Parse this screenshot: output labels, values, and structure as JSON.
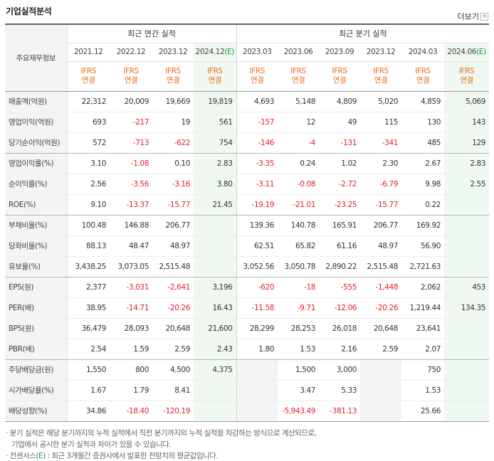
{
  "title": "기업실적분석",
  "more_label": "더보기",
  "header": {
    "row_title": "주요재무정보",
    "annual_group": "최근 연간 실적",
    "quarter_group": "최근 분기 실적",
    "periods": [
      {
        "base": "2021.12",
        "est": ""
      },
      {
        "base": "2022.12",
        "est": ""
      },
      {
        "base": "2023.12",
        "est": ""
      },
      {
        "base": "2024.12",
        "est": "(E)"
      },
      {
        "base": "2023.03",
        "est": ""
      },
      {
        "base": "2023.06",
        "est": ""
      },
      {
        "base": "2023.09",
        "est": ""
      },
      {
        "base": "2023.12",
        "est": ""
      },
      {
        "base": "2024.03",
        "est": ""
      },
      {
        "base": "2024.06",
        "est": "(E)"
      }
    ],
    "basis_top": "IFRS",
    "basis_bottom": "연결"
  },
  "rows": [
    {
      "label": "매출액(억원)",
      "values": [
        "22,312",
        "20,009",
        "19,669",
        "19,819",
        "4,693",
        "5,148",
        "4,809",
        "5,020",
        "4,859",
        "5,069"
      ]
    },
    {
      "label": "영업이익(억원)",
      "values": [
        "693",
        "-217",
        "19",
        "561",
        "-157",
        "12",
        "49",
        "115",
        "130",
        "143"
      ]
    },
    {
      "label": "당기순이익(억원)",
      "values": [
        "572",
        "-713",
        "-622",
        "754",
        "-146",
        "-4",
        "-131",
        "-341",
        "485",
        "129"
      ]
    },
    {
      "label": "영업이익률(%)",
      "values": [
        "3.10",
        "-1.08",
        "0.10",
        "2.83",
        "-3.35",
        "0.24",
        "1.02",
        "2.30",
        "2.67",
        "2.83"
      ]
    },
    {
      "label": "순이익률(%)",
      "values": [
        "2.56",
        "-3.56",
        "-3.16",
        "3.80",
        "-3.11",
        "-0.08",
        "-2.72",
        "-6.79",
        "9.98",
        "2.55"
      ]
    },
    {
      "label": "ROE(%)",
      "values": [
        "9.10",
        "-13.37",
        "-15.77",
        "21.45",
        "-19.19",
        "-21.01",
        "-23.25",
        "-15.77",
        "0.22",
        ""
      ]
    },
    {
      "label": "부채비율(%)",
      "values": [
        "100.48",
        "146.88",
        "206.77",
        "",
        "139.36",
        "140.78",
        "165.91",
        "206.77",
        "169.92",
        ""
      ]
    },
    {
      "label": "당좌비율(%)",
      "values": [
        "88.13",
        "48.47",
        "48.97",
        "",
        "62.51",
        "65.82",
        "61.16",
        "48.97",
        "56.90",
        ""
      ]
    },
    {
      "label": "유보율(%)",
      "values": [
        "3,438.25",
        "3,073.05",
        "2,515.48",
        "",
        "3,052.56",
        "3,050.78",
        "2,890.22",
        "2,515.48",
        "2,721.63",
        ""
      ]
    },
    {
      "label": "EPS(원)",
      "values": [
        "2,377",
        "-3,031",
        "-2,641",
        "3,196",
        "-620",
        "-18",
        "-555",
        "-1,448",
        "2,062",
        "453"
      ]
    },
    {
      "label": "PER(배)",
      "values": [
        "38.95",
        "-14.71",
        "-20.26",
        "16.43",
        "-11.58",
        "-9.71",
        "-12.06",
        "-20.26",
        "1,219.44",
        "134.35"
      ]
    },
    {
      "label": "BPS(원)",
      "values": [
        "36,479",
        "28,093",
        "20,648",
        "21,600",
        "28,299",
        "28,253",
        "26,018",
        "20,648",
        "23,641",
        ""
      ]
    },
    {
      "label": "PBR(배)",
      "values": [
        "2.54",
        "1.59",
        "2.59",
        "2.43",
        "1.80",
        "1.53",
        "2.16",
        "2.59",
        "2.07",
        ""
      ]
    },
    {
      "label": "주당배당금(원)",
      "values": [
        "1,550",
        "800",
        "4,500",
        "4,375",
        "",
        "1,500",
        "3,000",
        "",
        "750",
        ""
      ]
    },
    {
      "label": "시가배당률(%)",
      "values": [
        "1.67",
        "1.79",
        "8.41",
        "",
        "",
        "3.47",
        "5.33",
        "",
        "1.53",
        ""
      ]
    },
    {
      "label": "배당성향(%)",
      "values": [
        "34.86",
        "-18.40",
        "-120.19",
        "",
        "",
        "-5,943.49",
        "-381.13",
        "",
        "25.66",
        ""
      ]
    }
  ],
  "notes": {
    "line1": "분기 실적은 해당 분기까지의 누적 실적에서 직전 분기까지의 누적 실적을 차감하는 방식으로 계산되므로,",
    "line2": "기업에서 공시한 분기 실적과 차이가 있을 수 있습니다.",
    "line3_pre": "컨센서스(",
    "line3_mark": "E",
    "line3_post": ") : 최근 3개월간 증권사에서 발표한 전망치의 평균값입니다."
  },
  "colors": {
    "negative": "#e0222d",
    "ifrs": "#ef6b1f",
    "estimate_mark": "#1a9a3a",
    "estimate_bg": "#f0f9f1",
    "label_bg": "#f3f4f5"
  }
}
